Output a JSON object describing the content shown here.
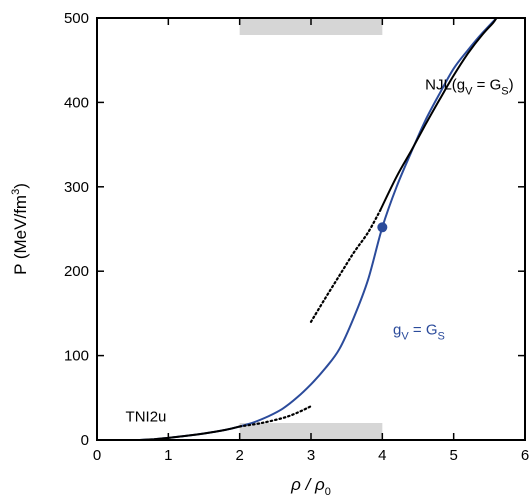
{
  "chart_data": {
    "type": "line",
    "title": "",
    "xlabel": "ρ / ρ",
    "xlabel_sub": "0",
    "ylabel": "P (MeV/fm",
    "ylabel_sup": "3",
    "ylabel_close": ")",
    "xlim": [
      0,
      6
    ],
    "ylim": [
      0,
      500
    ],
    "xticks": [
      0,
      1,
      2,
      3,
      4,
      5,
      6
    ],
    "yticks": [
      0,
      100,
      200,
      300,
      400,
      500
    ],
    "grid": false,
    "colors": {
      "blue": "#2b4b9b",
      "black": "#000000",
      "band": "#d6d6d6"
    },
    "shaded_band": {
      "x": [
        2,
        4
      ]
    },
    "series": [
      {
        "style": "solid",
        "color": "#2b4b9b",
        "points": [
          [
            0.6,
            0
          ],
          [
            0.8,
            1
          ],
          [
            1.0,
            2.5
          ],
          [
            1.2,
            4.5
          ],
          [
            1.4,
            6.5
          ],
          [
            1.6,
            9
          ],
          [
            1.8,
            12
          ],
          [
            2.0,
            16
          ],
          [
            2.2,
            21
          ],
          [
            2.4,
            28
          ],
          [
            2.6,
            37
          ],
          [
            2.8,
            50
          ],
          [
            3.0,
            66
          ],
          [
            3.2,
            85
          ],
          [
            3.4,
            108
          ],
          [
            3.6,
            145
          ],
          [
            3.8,
            190
          ],
          [
            4.0,
            252
          ],
          [
            4.2,
            300
          ],
          [
            4.4,
            340
          ],
          [
            4.6,
            378
          ],
          [
            4.8,
            410
          ],
          [
            5.0,
            440
          ],
          [
            5.2,
            462
          ],
          [
            5.4,
            482
          ],
          [
            5.6,
            500
          ]
        ]
      },
      {
        "style": "solid",
        "color": "#000000",
        "points": [
          [
            3.97,
            272
          ],
          [
            4.2,
            312
          ],
          [
            4.4,
            342
          ],
          [
            4.6,
            373
          ],
          [
            4.8,
            403
          ],
          [
            5.0,
            432
          ],
          [
            5.2,
            458
          ],
          [
            5.4,
            480
          ],
          [
            5.55,
            494
          ],
          [
            5.6,
            500
          ]
        ]
      },
      {
        "style": "dotted",
        "color": "#000000",
        "points": [
          [
            3.0,
            140
          ],
          [
            3.2,
            168
          ],
          [
            3.4,
            195
          ],
          [
            3.6,
            222
          ],
          [
            3.8,
            246
          ],
          [
            3.97,
            272
          ]
        ]
      },
      {
        "style": "solid",
        "color": "#000000",
        "points": [
          [
            0.6,
            0
          ],
          [
            0.8,
            1
          ],
          [
            1.0,
            2.5
          ],
          [
            1.2,
            4.5
          ],
          [
            1.4,
            6.5
          ],
          [
            1.6,
            9
          ],
          [
            1.8,
            12
          ],
          [
            2.0,
            16
          ]
        ]
      },
      {
        "style": "dotted",
        "color": "#000000",
        "points": [
          [
            2.0,
            16
          ],
          [
            2.3,
            20
          ],
          [
            2.6,
            26
          ],
          [
            2.8,
            32
          ],
          [
            3.0,
            40
          ]
        ]
      }
    ],
    "marker": {
      "x": 4.0,
      "y": 252,
      "color": "#2b4b9b"
    },
    "annotations": [
      {
        "id": "njl",
        "text": "NJL(g",
        "sub": "V",
        "mid": " = G",
        "sub2": "S",
        "end": ")",
        "x": 4.6,
        "y": 415,
        "color": "#000000"
      },
      {
        "id": "gv",
        "text": "g",
        "sub": "V",
        "mid": " = G",
        "sub2": "S",
        "end": "",
        "x": 4.15,
        "y": 125,
        "color": "#2b4b9b"
      },
      {
        "id": "tni",
        "text": "TNI2u",
        "x": 0.4,
        "y": 22,
        "color": "#000000"
      }
    ]
  }
}
